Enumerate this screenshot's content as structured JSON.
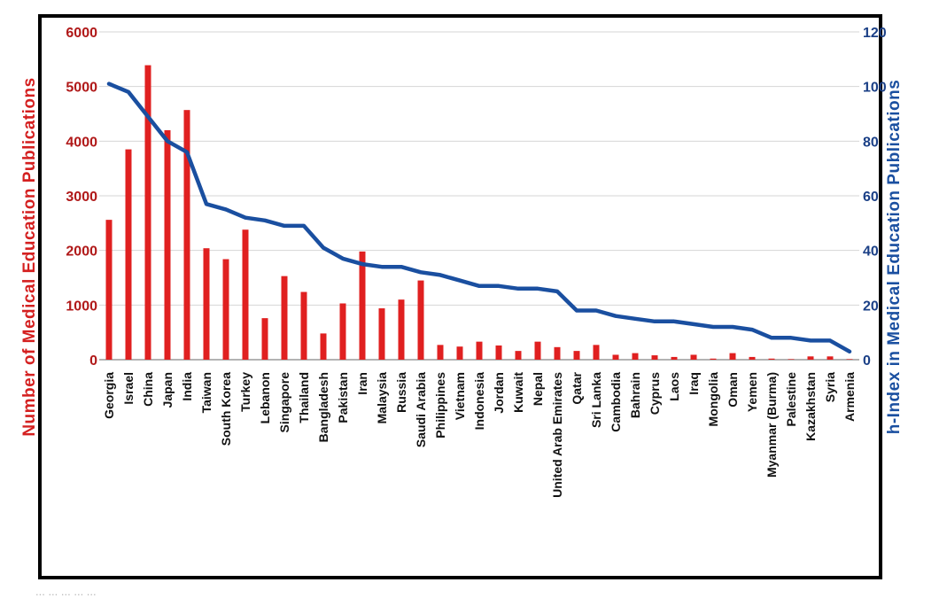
{
  "chart_data": {
    "type": "bar",
    "categories": [
      "Georgia",
      "Israel",
      "China",
      "Japan",
      "India",
      "Taiwan",
      "South Korea",
      "Turkey",
      "Lebanon",
      "Singapore",
      "Thailand",
      "Bangladesh",
      "Pakistan",
      "Iran",
      "Malaysia",
      "Russia",
      "Saudi Arabia",
      "Philippines",
      "Vietnam",
      "Indonesia",
      "Jordan",
      "Kuwait",
      "Nepal",
      "United Arab Emirates",
      "Qatar",
      "Sri Lanka",
      "Cambodia",
      "Bahrain",
      "Cyprus",
      "Laos",
      "Iraq",
      "Mongolia",
      "Oman",
      "Yemen",
      "Myanmar (Burma)",
      "Palestine",
      "Kazakhstan",
      "Syria",
      "Armenia"
    ],
    "series": [
      {
        "axis": "left",
        "type": "bar",
        "color": "#e02020",
        "values": [
          2560,
          3850,
          5390,
          4200,
          4570,
          2040,
          1840,
          2380,
          760,
          1530,
          1240,
          480,
          1030,
          1980,
          940,
          1100,
          1450,
          270,
          240,
          330,
          260,
          160,
          330,
          230,
          160,
          270,
          90,
          120,
          80,
          50,
          90,
          20,
          120,
          50,
          20,
          10,
          60,
          60,
          10
        ]
      },
      {
        "axis": "right",
        "type": "line",
        "color": "#1a4fa0",
        "values": [
          101,
          98,
          89,
          80,
          76,
          57,
          55,
          52,
          51,
          49,
          49,
          41,
          37,
          35,
          34,
          34,
          32,
          31,
          29,
          27,
          27,
          26,
          26,
          25,
          18,
          18,
          16,
          15,
          14,
          14,
          13,
          12,
          12,
          11,
          8,
          8,
          7,
          7,
          3
        ]
      }
    ],
    "ylabel_left": "Number of Medical Education Publications",
    "ylabel_right": "h-Index in Medical Education Publications",
    "ylim_left": [
      0,
      6000
    ],
    "ylim_right": [
      0,
      120
    ],
    "yticks_left": [
      "0",
      "1000",
      "2000",
      "3000",
      "4000",
      "5000",
      "6000"
    ],
    "yticks_right": [
      "0",
      "20",
      "40",
      "60",
      "80",
      "100",
      "120"
    ],
    "grid": true,
    "legend": "none"
  },
  "caption_fragment": "... ... ... ... ..."
}
